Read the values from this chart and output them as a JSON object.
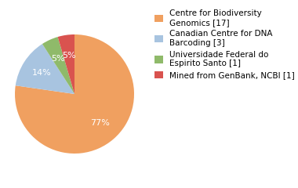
{
  "labels": [
    "Centre for Biodiversity\nGenomics [17]",
    "Canadian Centre for DNA\nBarcoding [3]",
    "Universidade Federal do\nEspirito Santo [1]",
    "Mined from GenBank, NCBI [1]"
  ],
  "values": [
    17,
    3,
    1,
    1
  ],
  "colors": [
    "#f0a060",
    "#a8c4e0",
    "#8fba6a",
    "#d9534f"
  ],
  "background_color": "#ffffff",
  "legend_fontsize": 7.5,
  "autopct_fontsize": 8,
  "startangle": 90
}
